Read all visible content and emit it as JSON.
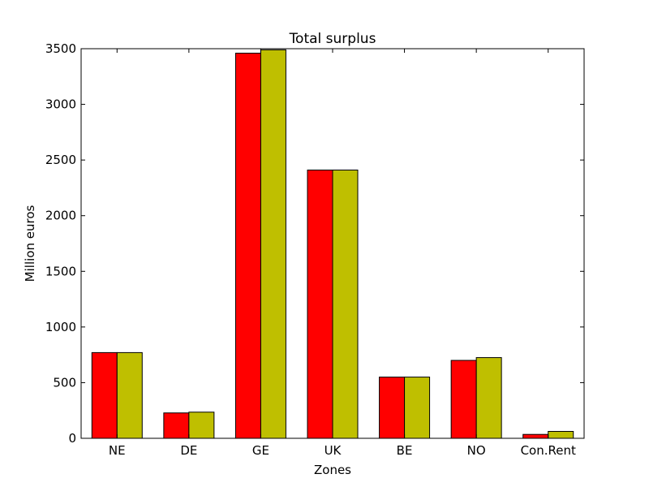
{
  "chart_data": {
    "type": "bar",
    "title": "Total surplus",
    "xlabel": "Zones",
    "ylabel": "Million euros",
    "categories": [
      "NE",
      "DE",
      "GE",
      "UK",
      "BE",
      "NO",
      "Con.Rent"
    ],
    "ylim": [
      0,
      3500
    ],
    "yticks": [
      0,
      500,
      1000,
      1500,
      2000,
      2500,
      3000,
      3500
    ],
    "grid": false,
    "legend": "none",
    "series": [
      {
        "color": "#ff0000",
        "values": [
          770,
          228,
          3460,
          2410,
          550,
          700,
          35
        ]
      },
      {
        "color": "#bfbf00",
        "values": [
          770,
          235,
          3490,
          2410,
          550,
          725,
          62
        ]
      }
    ]
  }
}
